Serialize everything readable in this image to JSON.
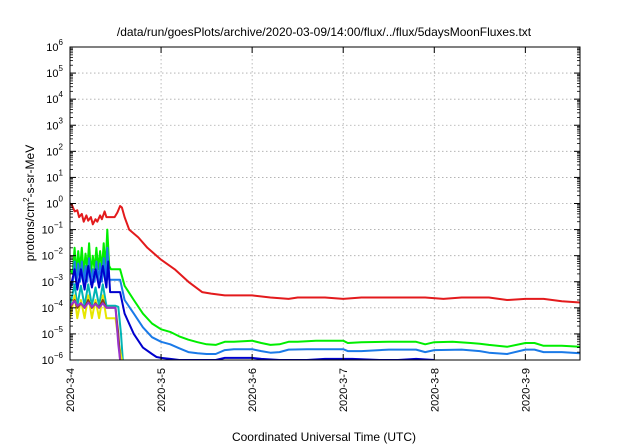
{
  "chart_data": {
    "type": "line",
    "title": "/data/run/goesPlots/archive/2020-03-09/14:00/flux/../flux/5daysMoonFluxes.txt",
    "xlabel": "Coordinated Universal Time (UTC)",
    "ylabel": "protons/cm²-s-sr-MeV",
    "ylabel_parts": {
      "pre": "protons/cm",
      "sup": "2",
      "post": "-s-sr-MeV"
    },
    "yscale": "log",
    "ylim": [
      1e-06,
      1000000.0
    ],
    "xlim": [
      0,
      5.6
    ],
    "grid": true,
    "x_ticks": [
      {
        "x": 0,
        "label": "2020-3-4"
      },
      {
        "x": 1,
        "label": "2020-3-5"
      },
      {
        "x": 2,
        "label": "2020-3-6"
      },
      {
        "x": 3,
        "label": "2020-3-7"
      },
      {
        "x": 4,
        "label": "2020-3-8"
      },
      {
        "x": 5,
        "label": "2020-3-9"
      }
    ],
    "y_ticks": [
      {
        "exp": -6
      },
      {
        "exp": -5
      },
      {
        "exp": -4
      },
      {
        "exp": -3
      },
      {
        "exp": -2
      },
      {
        "exp": -1
      },
      {
        "exp": 0
      },
      {
        "exp": 1
      },
      {
        "exp": 2
      },
      {
        "exp": 3
      },
      {
        "exp": 4
      },
      {
        "exp": 5
      },
      {
        "exp": 6
      }
    ],
    "series": [
      {
        "color": "#e31a1c",
        "points": [
          [
            0,
            1.0
          ],
          [
            0.02,
            0.9
          ],
          [
            0.05,
            0.5
          ],
          [
            0.08,
            0.55
          ],
          [
            0.1,
            0.3
          ],
          [
            0.13,
            0.4
          ],
          [
            0.15,
            0.2
          ],
          [
            0.18,
            0.35
          ],
          [
            0.2,
            0.22
          ],
          [
            0.23,
            0.3
          ],
          [
            0.25,
            0.16
          ],
          [
            0.28,
            0.25
          ],
          [
            0.3,
            0.2
          ],
          [
            0.33,
            0.35
          ],
          [
            0.35,
            0.25
          ],
          [
            0.38,
            0.5
          ],
          [
            0.4,
            0.3
          ],
          [
            0.43,
            0.3
          ],
          [
            0.46,
            0.3
          ],
          [
            0.49,
            0.3
          ],
          [
            0.52,
            0.45
          ],
          [
            0.55,
            0.8
          ],
          [
            0.57,
            0.7
          ],
          [
            0.6,
            0.3
          ],
          [
            0.65,
            0.1
          ],
          [
            0.75,
            0.05
          ],
          [
            0.85,
            0.02
          ],
          [
            1.0,
            0.007
          ],
          [
            1.15,
            0.003
          ],
          [
            1.3,
            0.001
          ],
          [
            1.45,
            0.0004
          ],
          [
            1.55,
            0.00035
          ],
          [
            1.7,
            0.0003
          ],
          [
            2.0,
            0.0003
          ],
          [
            2.2,
            0.00025
          ],
          [
            2.4,
            0.00022
          ],
          [
            2.5,
            0.00025
          ],
          [
            2.8,
            0.00025
          ],
          [
            3.0,
            0.00022
          ],
          [
            3.2,
            0.00025
          ],
          [
            3.5,
            0.00025
          ],
          [
            3.9,
            0.00025
          ],
          [
            4.1,
            0.00022
          ],
          [
            4.3,
            0.00025
          ],
          [
            4.6,
            0.00025
          ],
          [
            4.8,
            0.0002
          ],
          [
            5.0,
            0.00022
          ],
          [
            5.2,
            0.00022
          ],
          [
            5.4,
            0.00018
          ],
          [
            5.6,
            0.00016
          ]
        ]
      },
      {
        "color": "#00ee00",
        "points": [
          [
            0,
            0.003
          ],
          [
            0.03,
            0.002
          ],
          [
            0.05,
            0.02
          ],
          [
            0.07,
            0.002
          ],
          [
            0.09,
            0.015
          ],
          [
            0.11,
            0.003
          ],
          [
            0.13,
            0.02
          ],
          [
            0.15,
            0.002
          ],
          [
            0.17,
            0.012
          ],
          [
            0.19,
            0.003
          ],
          [
            0.21,
            0.03
          ],
          [
            0.23,
            0.002
          ],
          [
            0.25,
            0.01
          ],
          [
            0.27,
            0.003
          ],
          [
            0.29,
            0.02
          ],
          [
            0.31,
            0.003
          ],
          [
            0.33,
            0.015
          ],
          [
            0.35,
            0.003
          ],
          [
            0.37,
            0.03
          ],
          [
            0.39,
            0.003
          ],
          [
            0.41,
            0.1
          ],
          [
            0.43,
            0.004
          ],
          [
            0.45,
            0.003
          ],
          [
            0.5,
            0.003
          ],
          [
            0.55,
            0.003
          ],
          [
            0.6,
            0.0007
          ],
          [
            0.7,
            0.0002
          ],
          [
            0.8,
            6e-05
          ],
          [
            0.9,
            2.5e-05
          ],
          [
            1.0,
            1.5e-05
          ],
          [
            1.1,
            1.2e-05
          ],
          [
            1.2,
            8e-06
          ],
          [
            1.3,
            6e-06
          ],
          [
            1.4,
            4.8e-06
          ],
          [
            1.5,
            4e-06
          ],
          [
            1.6,
            3.8e-06
          ],
          [
            1.7,
            5e-06
          ],
          [
            1.8,
            5e-06
          ],
          [
            2.0,
            5.5e-06
          ],
          [
            2.1,
            4.5e-06
          ],
          [
            2.2,
            3.8e-06
          ],
          [
            2.3,
            4e-06
          ],
          [
            2.4,
            5e-06
          ],
          [
            2.5,
            5e-06
          ],
          [
            2.7,
            5.5e-06
          ],
          [
            3.0,
            5.5e-06
          ],
          [
            3.05,
            4.5e-06
          ],
          [
            3.2,
            4.8e-06
          ],
          [
            3.5,
            5e-06
          ],
          [
            3.8,
            5e-06
          ],
          [
            3.9,
            4e-06
          ],
          [
            4.0,
            4.8e-06
          ],
          [
            4.2,
            5e-06
          ],
          [
            4.4,
            4.5e-06
          ],
          [
            4.5,
            4.2e-06
          ],
          [
            4.6,
            3.8e-06
          ],
          [
            4.8,
            3.2e-06
          ],
          [
            5.0,
            4.5e-06
          ],
          [
            5.1,
            4.5e-06
          ],
          [
            5.2,
            3.5e-06
          ],
          [
            5.4,
            3.5e-06
          ],
          [
            5.6,
            3.2e-06
          ]
        ]
      },
      {
        "color": "#1a7ae8",
        "points": [
          [
            0,
            0.001
          ],
          [
            0.03,
            0.0008
          ],
          [
            0.05,
            0.006
          ],
          [
            0.07,
            0.0008
          ],
          [
            0.09,
            0.005
          ],
          [
            0.11,
            0.001
          ],
          [
            0.13,
            0.006
          ],
          [
            0.15,
            0.0008
          ],
          [
            0.17,
            0.004
          ],
          [
            0.19,
            0.001
          ],
          [
            0.21,
            0.008
          ],
          [
            0.23,
            0.0008
          ],
          [
            0.25,
            0.003
          ],
          [
            0.27,
            0.001
          ],
          [
            0.29,
            0.006
          ],
          [
            0.31,
            0.001
          ],
          [
            0.33,
            0.005
          ],
          [
            0.35,
            0.001
          ],
          [
            0.37,
            0.008
          ],
          [
            0.39,
            0.001
          ],
          [
            0.41,
            0.02
          ],
          [
            0.43,
            0.0012
          ],
          [
            0.5,
            0.0012
          ],
          [
            0.55,
            0.0012
          ],
          [
            0.6,
            0.0002
          ],
          [
            0.7,
            6e-05
          ],
          [
            0.8,
            1.8e-05
          ],
          [
            0.9,
            7.5e-06
          ],
          [
            1.0,
            5e-06
          ],
          [
            1.1,
            4e-06
          ],
          [
            1.2,
            2.8e-06
          ],
          [
            1.3,
            2e-06
          ],
          [
            1.4,
            1.8e-06
          ],
          [
            1.5,
            1.7e-06
          ],
          [
            1.6,
            1.7e-06
          ],
          [
            1.7,
            2.4e-06
          ],
          [
            1.8,
            2.6e-06
          ],
          [
            2.0,
            2.6e-06
          ],
          [
            2.1,
            2.2e-06
          ],
          [
            2.2,
            1.9e-06
          ],
          [
            2.3,
            2e-06
          ],
          [
            2.4,
            2.5e-06
          ],
          [
            2.6,
            2.6e-06
          ],
          [
            3.0,
            2.6e-06
          ],
          [
            3.05,
            2.2e-06
          ],
          [
            3.2,
            2.2e-06
          ],
          [
            3.5,
            2.5e-06
          ],
          [
            3.8,
            2.5e-06
          ],
          [
            3.9,
            2e-06
          ],
          [
            4.0,
            2.4e-06
          ],
          [
            4.3,
            2.5e-06
          ],
          [
            4.5,
            2.2e-06
          ],
          [
            4.6,
            1.9e-06
          ],
          [
            4.8,
            1.7e-06
          ],
          [
            5.0,
            2.5e-06
          ],
          [
            5.1,
            2.5e-06
          ],
          [
            5.2,
            2e-06
          ],
          [
            5.4,
            2e-06
          ],
          [
            5.6,
            1.8e-06
          ]
        ]
      },
      {
        "color": "#0000cd",
        "points": [
          [
            0,
            0.0005
          ],
          [
            0.05,
            0.003
          ],
          [
            0.08,
            0.0005
          ],
          [
            0.12,
            0.003
          ],
          [
            0.16,
            0.0005
          ],
          [
            0.2,
            0.004
          ],
          [
            0.24,
            0.0006
          ],
          [
            0.28,
            0.003
          ],
          [
            0.32,
            0.0006
          ],
          [
            0.36,
            0.004
          ],
          [
            0.4,
            0.0006
          ],
          [
            0.42,
            0.006
          ],
          [
            0.44,
            0.0004
          ],
          [
            0.55,
            0.0004
          ],
          [
            0.6,
            6e-05
          ],
          [
            0.7,
            1e-05
          ],
          [
            0.8,
            3e-06
          ],
          [
            0.9,
            1.7e-06
          ],
          [
            0.95,
            1.3e-06
          ],
          [
            1.0,
            1.2e-06
          ],
          [
            1.1,
            1.1e-06
          ],
          [
            1.2,
            1e-06
          ],
          [
            1.6,
            1e-06
          ],
          [
            1.7,
            1.2e-06
          ],
          [
            2.0,
            1.2e-06
          ],
          [
            2.1,
            1.1e-06
          ],
          [
            2.3,
            1e-06
          ],
          [
            2.6,
            1e-06
          ],
          [
            2.8,
            1.1e-06
          ],
          [
            3.0,
            1.1e-06
          ],
          [
            3.1,
            1.1e-06
          ],
          [
            3.4,
            1e-06
          ],
          [
            3.6,
            1e-06
          ],
          [
            3.8,
            1.1e-06
          ],
          [
            4.0,
            1e-06
          ]
        ]
      },
      {
        "color": "#00b4b4",
        "points": [
          [
            0,
            0.00012
          ],
          [
            0.05,
            0.0008
          ],
          [
            0.08,
            0.00012
          ],
          [
            0.12,
            0.0007
          ],
          [
            0.16,
            0.00012
          ],
          [
            0.2,
            0.0008
          ],
          [
            0.24,
            0.00012
          ],
          [
            0.28,
            0.0006
          ],
          [
            0.32,
            0.00012
          ],
          [
            0.36,
            0.0008
          ],
          [
            0.4,
            0.00012
          ],
          [
            0.44,
            0.00012
          ],
          [
            0.5,
            0.00012
          ],
          [
            0.53,
            0.00011
          ],
          [
            0.56,
            1e-05
          ],
          [
            0.58,
            1e-06
          ]
        ]
      },
      {
        "color": "#e6e600",
        "points": [
          [
            0,
            4e-05
          ],
          [
            0.05,
            0.0003
          ],
          [
            0.08,
            4e-05
          ],
          [
            0.12,
            0.0002
          ],
          [
            0.16,
            4e-05
          ],
          [
            0.2,
            0.0003
          ],
          [
            0.24,
            4e-05
          ],
          [
            0.28,
            0.0002
          ],
          [
            0.32,
            4e-05
          ],
          [
            0.36,
            0.0003
          ],
          [
            0.4,
            4e-05
          ],
          [
            0.44,
            4e-05
          ],
          [
            0.5,
            4e-05
          ],
          [
            0.54,
            3.5e-06
          ],
          [
            0.57,
            1e-06
          ]
        ]
      },
      {
        "color": "#8b4513",
        "points": [
          [
            0,
            0.0001
          ],
          [
            0.05,
            0.0002
          ],
          [
            0.08,
            0.0001
          ],
          [
            0.12,
            0.00015
          ],
          [
            0.16,
            0.0001
          ],
          [
            0.2,
            0.0002
          ],
          [
            0.24,
            0.0001
          ],
          [
            0.28,
            0.00015
          ],
          [
            0.32,
            0.0001
          ],
          [
            0.36,
            0.0002
          ],
          [
            0.4,
            0.0001
          ],
          [
            0.44,
            0.0001
          ],
          [
            0.5,
            0.0001
          ],
          [
            0.53,
            1e-05
          ],
          [
            0.55,
            1e-06
          ]
        ]
      },
      {
        "color": "#9932cc",
        "points": [
          [
            0,
            0.00012
          ],
          [
            0.05,
            0.00018
          ],
          [
            0.08,
            0.00012
          ],
          [
            0.12,
            0.00015
          ],
          [
            0.16,
            0.0001
          ],
          [
            0.2,
            0.00016
          ],
          [
            0.24,
            0.00011
          ],
          [
            0.28,
            0.00014
          ],
          [
            0.32,
            0.0001
          ],
          [
            0.36,
            0.00015
          ],
          [
            0.4,
            0.0001
          ],
          [
            0.44,
            0.0001
          ],
          [
            0.5,
            0.0001
          ],
          [
            0.53,
            4e-06
          ],
          [
            0.55,
            1e-06
          ]
        ]
      }
    ]
  }
}
